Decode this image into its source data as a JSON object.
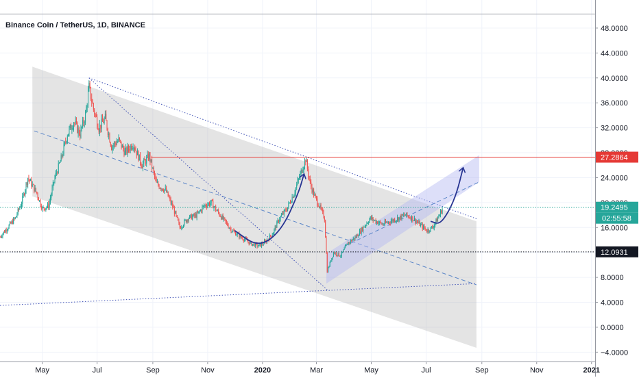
{
  "chart_data": {
    "type": "candlestick",
    "title": "Binance Coin / TetherUS, 1D, BINANCE",
    "x_ticks": [
      {
        "label": "May",
        "date": "2019-05-01",
        "bold": false
      },
      {
        "label": "Jul",
        "date": "2019-07-01",
        "bold": false
      },
      {
        "label": "Sep",
        "date": "2019-09-01",
        "bold": false
      },
      {
        "label": "Nov",
        "date": "2019-11-01",
        "bold": false
      },
      {
        "label": "2020",
        "date": "2020-01-01",
        "bold": true
      },
      {
        "label": "Mar",
        "date": "2020-03-01",
        "bold": false
      },
      {
        "label": "May",
        "date": "2020-05-01",
        "bold": false
      },
      {
        "label": "Jul",
        "date": "2020-07-01",
        "bold": false
      },
      {
        "label": "Sep",
        "date": "2020-09-01",
        "bold": false
      },
      {
        "label": "Nov",
        "date": "2020-11-01",
        "bold": false
      },
      {
        "label": "2021",
        "date": "2021-01-01",
        "bold": true
      }
    ],
    "y_ticks": [
      "48.0000",
      "44.0000",
      "40.0000",
      "36.0000",
      "32.0000",
      "28.0000",
      "24.0000",
      "20.0000",
      "16.0000",
      "12.0000",
      "8.0000",
      "4.0000",
      "0.0000",
      "−4.0000"
    ],
    "y_tick_values": [
      48,
      44,
      40,
      36,
      32,
      28,
      24,
      20,
      16,
      12,
      8,
      4,
      0,
      -4
    ],
    "ylim": [
      -5.5,
      52.5
    ],
    "xlim": [
      "2019-03-15",
      "2021-01-05"
    ],
    "price_path": [
      [
        "2019-03-15",
        14.5
      ],
      [
        "2019-04-01",
        17.5
      ],
      [
        "2019-04-08",
        20.0
      ],
      [
        "2019-04-15",
        24.0
      ],
      [
        "2019-04-25",
        21.5
      ],
      [
        "2019-05-01",
        19.0
      ],
      [
        "2019-05-08",
        19.5
      ],
      [
        "2019-05-15",
        24.0
      ],
      [
        "2019-05-22",
        27.0
      ],
      [
        "2019-05-29",
        31.0
      ],
      [
        "2019-06-05",
        33.0
      ],
      [
        "2019-06-12",
        31.0
      ],
      [
        "2019-06-18",
        34.0
      ],
      [
        "2019-06-22",
        38.5
      ],
      [
        "2019-06-27",
        35.0
      ],
      [
        "2019-07-03",
        32.0
      ],
      [
        "2019-07-10",
        33.5
      ],
      [
        "2019-07-17",
        29.0
      ],
      [
        "2019-07-25",
        30.0
      ],
      [
        "2019-08-01",
        28.0
      ],
      [
        "2019-08-10",
        29.5
      ],
      [
        "2019-08-20",
        26.0
      ],
      [
        "2019-08-28",
        27.5
      ],
      [
        "2019-09-05",
        23.0
      ],
      [
        "2019-09-15",
        22.0
      ],
      [
        "2019-09-24",
        19.0
      ],
      [
        "2019-10-01",
        16.0
      ],
      [
        "2019-10-10",
        17.5
      ],
      [
        "2019-10-20",
        18.0
      ],
      [
        "2019-10-28",
        19.5
      ],
      [
        "2019-11-05",
        20.0
      ],
      [
        "2019-11-12",
        18.5
      ],
      [
        "2019-11-20",
        17.0
      ],
      [
        "2019-11-28",
        15.5
      ],
      [
        "2019-12-08",
        14.5
      ],
      [
        "2019-12-18",
        13.5
      ],
      [
        "2019-12-28",
        13.0
      ],
      [
        "2020-01-05",
        13.8
      ],
      [
        "2020-01-12",
        15.0
      ],
      [
        "2020-01-20",
        17.5
      ],
      [
        "2020-01-28",
        19.0
      ],
      [
        "2020-02-05",
        21.5
      ],
      [
        "2020-02-12",
        24.5
      ],
      [
        "2020-02-18",
        27.0
      ],
      [
        "2020-02-23",
        23.0
      ],
      [
        "2020-02-28",
        21.0
      ],
      [
        "2020-03-04",
        19.5
      ],
      [
        "2020-03-10",
        17.5
      ],
      [
        "2020-03-13",
        9.0
      ],
      [
        "2020-03-20",
        12.0
      ],
      [
        "2020-03-28",
        11.5
      ],
      [
        "2020-04-05",
        13.5
      ],
      [
        "2020-04-14",
        14.5
      ],
      [
        "2020-04-22",
        16.0
      ],
      [
        "2020-04-30",
        17.5
      ],
      [
        "2020-05-06",
        17.0
      ],
      [
        "2020-05-14",
        16.5
      ],
      [
        "2020-05-22",
        17.0
      ],
      [
        "2020-05-31",
        17.5
      ],
      [
        "2020-06-08",
        18.0
      ],
      [
        "2020-06-16",
        17.5
      ],
      [
        "2020-06-24",
        16.5
      ],
      [
        "2020-07-02",
        15.5
      ],
      [
        "2020-07-08",
        16.0
      ],
      [
        "2020-07-14",
        17.5
      ],
      [
        "2020-07-19",
        19.0
      ]
    ],
    "channel_big": {
      "color": "#9e9e9e",
      "polygon": [
        [
          "2019-04-20",
          41.8
        ],
        [
          "2020-08-26",
          17.0
        ],
        [
          "2020-08-26",
          -3.3
        ],
        [
          "2019-04-20",
          21.0
        ]
      ],
      "top_line": [
        [
          "2019-06-22",
          40.0
        ],
        [
          "2020-08-26",
          17.4
        ]
      ],
      "mid_line": [
        [
          "2019-04-22",
          31.5
        ],
        [
          "2020-08-26",
          6.8
        ]
      ]
    },
    "channel_small": {
      "color": "#b3b8f2",
      "polygon": [
        [
          "2020-03-12",
          7.0
        ],
        [
          "2020-08-29",
          23.3
        ],
        [
          "2020-08-29",
          27.6
        ],
        [
          "2020-03-12",
          11.8
        ]
      ],
      "mid_line": [
        [
          "2020-04-01",
          13.0
        ],
        [
          "2020-08-29",
          23.3
        ]
      ]
    },
    "trendlines": [
      {
        "color": "#3f51b5",
        "points": [
          [
            "2019-03-15",
            3.5
          ],
          [
            "2020-08-26",
            7.0
          ]
        ]
      },
      {
        "color": "#3f51b5",
        "points": [
          [
            "2019-06-22",
            40.0
          ],
          [
            "2020-03-13",
            6.0
          ]
        ]
      }
    ],
    "horizontal_lines": [
      {
        "value": 27.2864,
        "label": "27.2864",
        "color": "#e53935",
        "from": "2019-08-30"
      },
      {
        "value": 19.2495,
        "label": "19.2495",
        "sublabel": "02:55:58",
        "color": "#26a69a",
        "dotted": true
      },
      {
        "value": 12.0931,
        "label": "12.0931",
        "color": "#131722",
        "dotted": true
      }
    ],
    "arrows": [
      {
        "color": "#283593",
        "points": [
          [
            "2019-12-01",
            15.5
          ],
          [
            "2019-12-28",
            12.8
          ],
          [
            "2020-01-22",
            15.5
          ],
          [
            "2020-02-10",
            21.5
          ],
          [
            "2020-02-16",
            24.5
          ]
        ]
      },
      {
        "color": "#283593",
        "points": [
          [
            "2020-07-06",
            17.0
          ],
          [
            "2020-07-16",
            16.5
          ],
          [
            "2020-07-26",
            18.5
          ],
          [
            "2020-08-04",
            21.5
          ],
          [
            "2020-08-11",
            25.5
          ]
        ]
      }
    ]
  }
}
